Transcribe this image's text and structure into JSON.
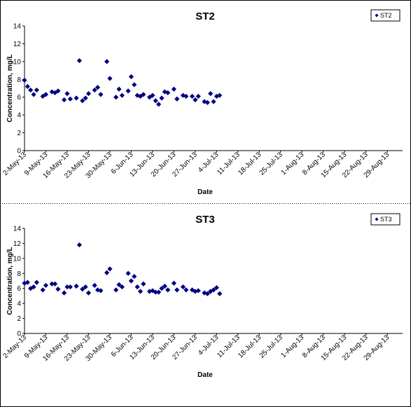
{
  "chart_data": [
    {
      "type": "scatter",
      "title": "ST2",
      "xlabel": "Date",
      "ylabel": "Concentration, mg/L",
      "ylim": [
        0,
        14
      ],
      "yticks": [
        "0",
        "2",
        "4",
        "6",
        "8",
        "10",
        "12",
        "14"
      ],
      "xlim": [
        "2013-05-02",
        "2013-09-03"
      ],
      "x_tick_labels": [
        "2-May-13",
        "9-May-13",
        "16-May-13",
        "23-May-13",
        "30-May-13",
        "6-Jun-13",
        "13-Jun-13",
        "20-Jun-13",
        "27-Jun-13",
        "4-Jul-13",
        "11-Jul-13",
        "18-Jul-13",
        "25-Jul-13",
        "1-Aug-13",
        "8-Aug-13",
        "15-Aug-13",
        "22-Aug-13",
        "29-Aug-13"
      ],
      "grid": false,
      "legend_position": "top-right",
      "marker_color": "#000080",
      "series": [
        {
          "name": "ST2",
          "x": [
            "2013-05-02",
            "2013-05-03",
            "2013-05-04",
            "2013-05-05",
            "2013-05-06",
            "2013-05-08",
            "2013-05-09",
            "2013-05-11",
            "2013-05-12",
            "2013-05-13",
            "2013-05-15",
            "2013-05-16",
            "2013-05-17",
            "2013-05-19",
            "2013-05-20",
            "2013-05-21",
            "2013-05-22",
            "2013-05-23",
            "2013-05-25",
            "2013-05-26",
            "2013-05-27",
            "2013-05-29",
            "2013-05-30",
            "2013-06-01",
            "2013-06-02",
            "2013-06-03",
            "2013-06-05",
            "2013-06-06",
            "2013-06-07",
            "2013-06-08",
            "2013-06-09",
            "2013-06-10",
            "2013-06-12",
            "2013-06-13",
            "2013-06-14",
            "2013-06-15",
            "2013-06-16",
            "2013-06-17",
            "2013-06-18",
            "2013-06-20",
            "2013-06-21",
            "2013-06-23",
            "2013-06-24",
            "2013-06-26",
            "2013-06-27",
            "2013-06-28",
            "2013-06-30",
            "2013-07-01",
            "2013-07-02",
            "2013-07-03",
            "2013-07-04",
            "2013-07-05"
          ],
          "y": [
            7.9,
            7.2,
            6.8,
            6.3,
            6.8,
            6.1,
            6.3,
            6.6,
            6.5,
            6.7,
            5.7,
            6.4,
            5.8,
            5.9,
            10.1,
            5.6,
            5.9,
            6.4,
            6.8,
            7.1,
            6.3,
            10.0,
            8.1,
            6.0,
            6.9,
            6.2,
            6.7,
            8.3,
            7.4,
            6.2,
            6.1,
            6.3,
            6.0,
            6.2,
            5.6,
            5.2,
            5.9,
            6.6,
            6.5,
            6.9,
            5.8,
            6.2,
            6.1,
            6.1,
            5.7,
            6.1,
            5.5,
            5.4,
            6.4,
            5.5,
            6.1,
            6.2
          ]
        }
      ]
    },
    {
      "type": "scatter",
      "title": "ST3",
      "xlabel": "Date",
      "ylabel": "Concentration, mg/L",
      "ylim": [
        0,
        14
      ],
      "yticks": [
        "0",
        "2",
        "4",
        "6",
        "8",
        "10",
        "12",
        "14"
      ],
      "xlim": [
        "2013-05-02",
        "2013-09-03"
      ],
      "x_tick_labels": [
        "2-May-13",
        "9-May-13",
        "16-May-13",
        "23-May-13",
        "30-May-13",
        "6-Jun-13",
        "13-Jun-13",
        "20-Jun-13",
        "27-Jun-13",
        "4-Jul-13",
        "11-Jul-13",
        "18-Jul-13",
        "25-Jul-13",
        "1-Aug-13",
        "8-Aug-13",
        "15-Aug-13",
        "22-Aug-13",
        "29-Aug-13"
      ],
      "grid": false,
      "legend_position": "top-right",
      "marker_color": "#000080",
      "series": [
        {
          "name": "ST3",
          "x": [
            "2013-05-02",
            "2013-05-03",
            "2013-05-04",
            "2013-05-05",
            "2013-05-06",
            "2013-05-08",
            "2013-05-09",
            "2013-05-11",
            "2013-05-12",
            "2013-05-13",
            "2013-05-15",
            "2013-05-16",
            "2013-05-17",
            "2013-05-19",
            "2013-05-20",
            "2013-05-21",
            "2013-05-22",
            "2013-05-23",
            "2013-05-25",
            "2013-05-26",
            "2013-05-27",
            "2013-05-29",
            "2013-05-30",
            "2013-06-01",
            "2013-06-02",
            "2013-06-03",
            "2013-06-05",
            "2013-06-06",
            "2013-06-07",
            "2013-06-08",
            "2013-06-09",
            "2013-06-10",
            "2013-06-12",
            "2013-06-13",
            "2013-06-14",
            "2013-06-15",
            "2013-06-16",
            "2013-06-17",
            "2013-06-18",
            "2013-06-20",
            "2013-06-21",
            "2013-06-23",
            "2013-06-24",
            "2013-06-26",
            "2013-06-27",
            "2013-06-28",
            "2013-06-30",
            "2013-07-01",
            "2013-07-02",
            "2013-07-03",
            "2013-07-04",
            "2013-07-05"
          ],
          "y": [
            6.7,
            6.8,
            6.0,
            6.2,
            6.8,
            5.8,
            6.4,
            6.6,
            6.6,
            5.9,
            5.4,
            6.2,
            6.2,
            6.3,
            11.8,
            5.9,
            6.2,
            5.4,
            6.4,
            5.8,
            5.7,
            8.1,
            8.6,
            5.8,
            6.5,
            6.2,
            8.0,
            7.0,
            7.6,
            6.2,
            5.6,
            6.6,
            5.6,
            5.7,
            5.5,
            5.5,
            6.0,
            6.3,
            5.8,
            6.7,
            5.8,
            6.2,
            5.8,
            5.8,
            5.6,
            5.7,
            5.4,
            5.3,
            5.6,
            5.8,
            6.1,
            5.3
          ]
        }
      ]
    }
  ]
}
